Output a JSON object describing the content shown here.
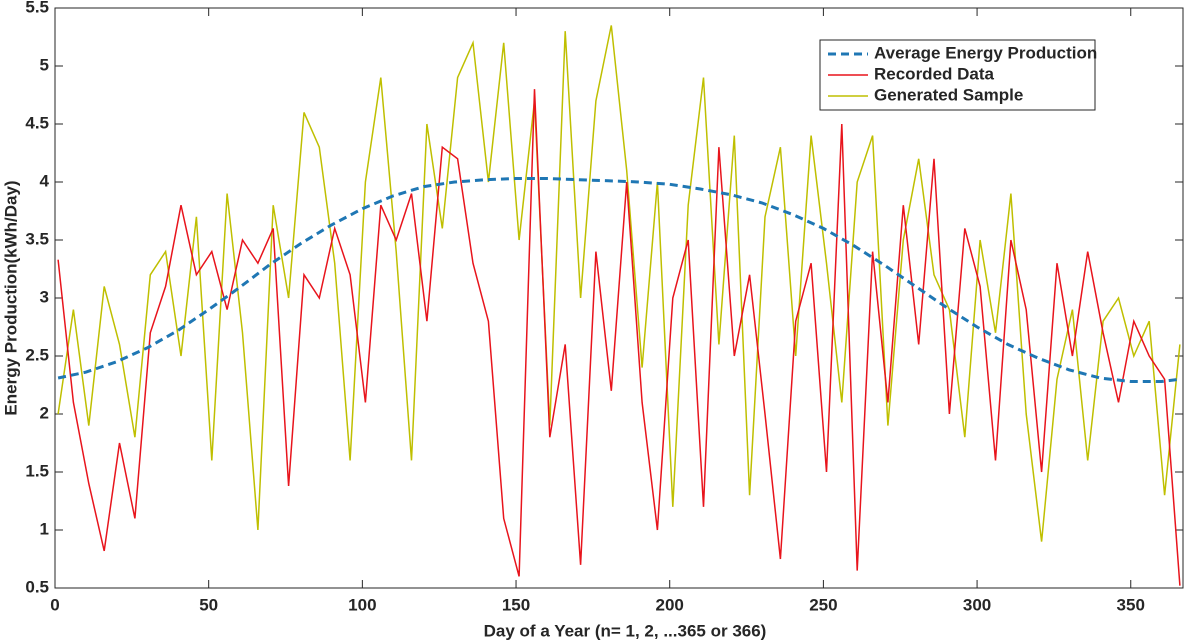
{
  "chart_data": {
    "type": "line",
    "xlabel": "Day of a Year (n= 1, 2, ...365 or 366)",
    "ylabel": "Energy Production(kWh/Day)",
    "xlim": [
      0,
      367
    ],
    "ylim": [
      0.5,
      5.5
    ],
    "xticks": [
      0,
      50,
      100,
      150,
      200,
      250,
      300,
      350
    ],
    "yticks": [
      0.5,
      1,
      1.5,
      2,
      2.5,
      3,
      3.5,
      4,
      4.5,
      5,
      5.5
    ],
    "legend": "upper right",
    "series": [
      {
        "name": "Average Energy Production",
        "color": "#1f77b4",
        "dash": true,
        "x": [
          1,
          10,
          20,
          30,
          40,
          50,
          60,
          70,
          80,
          90,
          100,
          110,
          120,
          130,
          140,
          150,
          160,
          170,
          180,
          190,
          200,
          210,
          220,
          230,
          240,
          250,
          260,
          270,
          280,
          290,
          300,
          310,
          320,
          330,
          340,
          350,
          360,
          366
        ],
        "values": [
          2.31,
          2.36,
          2.45,
          2.57,
          2.72,
          2.9,
          3.09,
          3.29,
          3.47,
          3.63,
          3.77,
          3.88,
          3.96,
          4.0,
          4.02,
          4.03,
          4.03,
          4.02,
          4.01,
          4.0,
          3.98,
          3.94,
          3.89,
          3.82,
          3.72,
          3.6,
          3.45,
          3.28,
          3.1,
          2.92,
          2.75,
          2.6,
          2.48,
          2.38,
          2.31,
          2.28,
          2.28,
          2.3
        ]
      },
      {
        "name": "Recorded Data",
        "color": "#e8141c",
        "dash": false,
        "x": [
          1,
          6,
          11,
          16,
          21,
          26,
          31,
          36,
          41,
          46,
          51,
          56,
          61,
          66,
          71,
          76,
          81,
          86,
          91,
          96,
          101,
          106,
          111,
          116,
          121,
          126,
          131,
          136,
          141,
          146,
          151,
          156,
          161,
          166,
          171,
          176,
          181,
          186,
          191,
          196,
          201,
          206,
          211,
          216,
          221,
          226,
          231,
          236,
          241,
          246,
          251,
          256,
          261,
          266,
          271,
          276,
          281,
          286,
          291,
          296,
          301,
          306,
          311,
          316,
          321,
          326,
          331,
          336,
          341,
          346,
          351,
          356,
          361,
          366
        ],
        "values": [
          3.33,
          2.1,
          1.4,
          0.82,
          1.75,
          1.1,
          2.7,
          3.1,
          3.8,
          3.2,
          3.4,
          2.9,
          3.5,
          3.3,
          3.6,
          1.38,
          3.2,
          3.0,
          3.6,
          3.2,
          2.1,
          3.8,
          3.5,
          3.9,
          2.8,
          4.3,
          4.2,
          3.3,
          2.8,
          1.1,
          0.6,
          4.8,
          1.8,
          2.6,
          0.7,
          3.4,
          2.2,
          4.0,
          2.1,
          1.0,
          3.0,
          3.5,
          1.2,
          4.3,
          2.5,
          3.2,
          2.0,
          0.75,
          2.8,
          3.3,
          1.5,
          4.5,
          0.65,
          3.4,
          2.1,
          3.8,
          2.6,
          4.2,
          2.0,
          3.6,
          3.1,
          1.6,
          3.5,
          2.9,
          1.5,
          3.3,
          2.5,
          3.4,
          2.7,
          2.1,
          2.8,
          2.5,
          2.3,
          0.52
        ]
      },
      {
        "name": "Generated Sample",
        "color": "#bfbf00",
        "dash": false,
        "x": [
          1,
          6,
          11,
          16,
          21,
          26,
          31,
          36,
          41,
          46,
          51,
          56,
          61,
          66,
          71,
          76,
          81,
          86,
          91,
          96,
          101,
          106,
          111,
          116,
          121,
          126,
          131,
          136,
          141,
          146,
          151,
          156,
          161,
          166,
          171,
          176,
          181,
          186,
          191,
          196,
          201,
          206,
          211,
          216,
          221,
          226,
          231,
          236,
          241,
          246,
          251,
          256,
          261,
          266,
          271,
          276,
          281,
          286,
          291,
          296,
          301,
          306,
          311,
          316,
          321,
          326,
          331,
          336,
          341,
          346,
          351,
          356,
          361,
          366
        ],
        "values": [
          2.0,
          2.9,
          1.9,
          3.1,
          2.6,
          1.8,
          3.2,
          3.4,
          2.5,
          3.7,
          1.6,
          3.9,
          2.7,
          1.0,
          3.8,
          3.0,
          4.6,
          4.3,
          3.3,
          1.6,
          4.0,
          4.9,
          3.4,
          1.6,
          4.5,
          3.6,
          4.9,
          5.2,
          4.0,
          5.2,
          3.5,
          4.7,
          1.9,
          5.3,
          3.0,
          4.7,
          5.35,
          4.1,
          2.4,
          4.0,
          1.2,
          3.8,
          4.9,
          2.6,
          4.4,
          1.3,
          3.7,
          4.3,
          2.5,
          4.4,
          3.3,
          2.1,
          4.0,
          4.4,
          1.9,
          3.5,
          4.2,
          3.2,
          2.9,
          1.8,
          3.5,
          2.7,
          3.9,
          2.0,
          0.9,
          2.3,
          2.9,
          1.6,
          2.8,
          3.0,
          2.5,
          2.8,
          1.3,
          2.6
        ]
      }
    ]
  }
}
